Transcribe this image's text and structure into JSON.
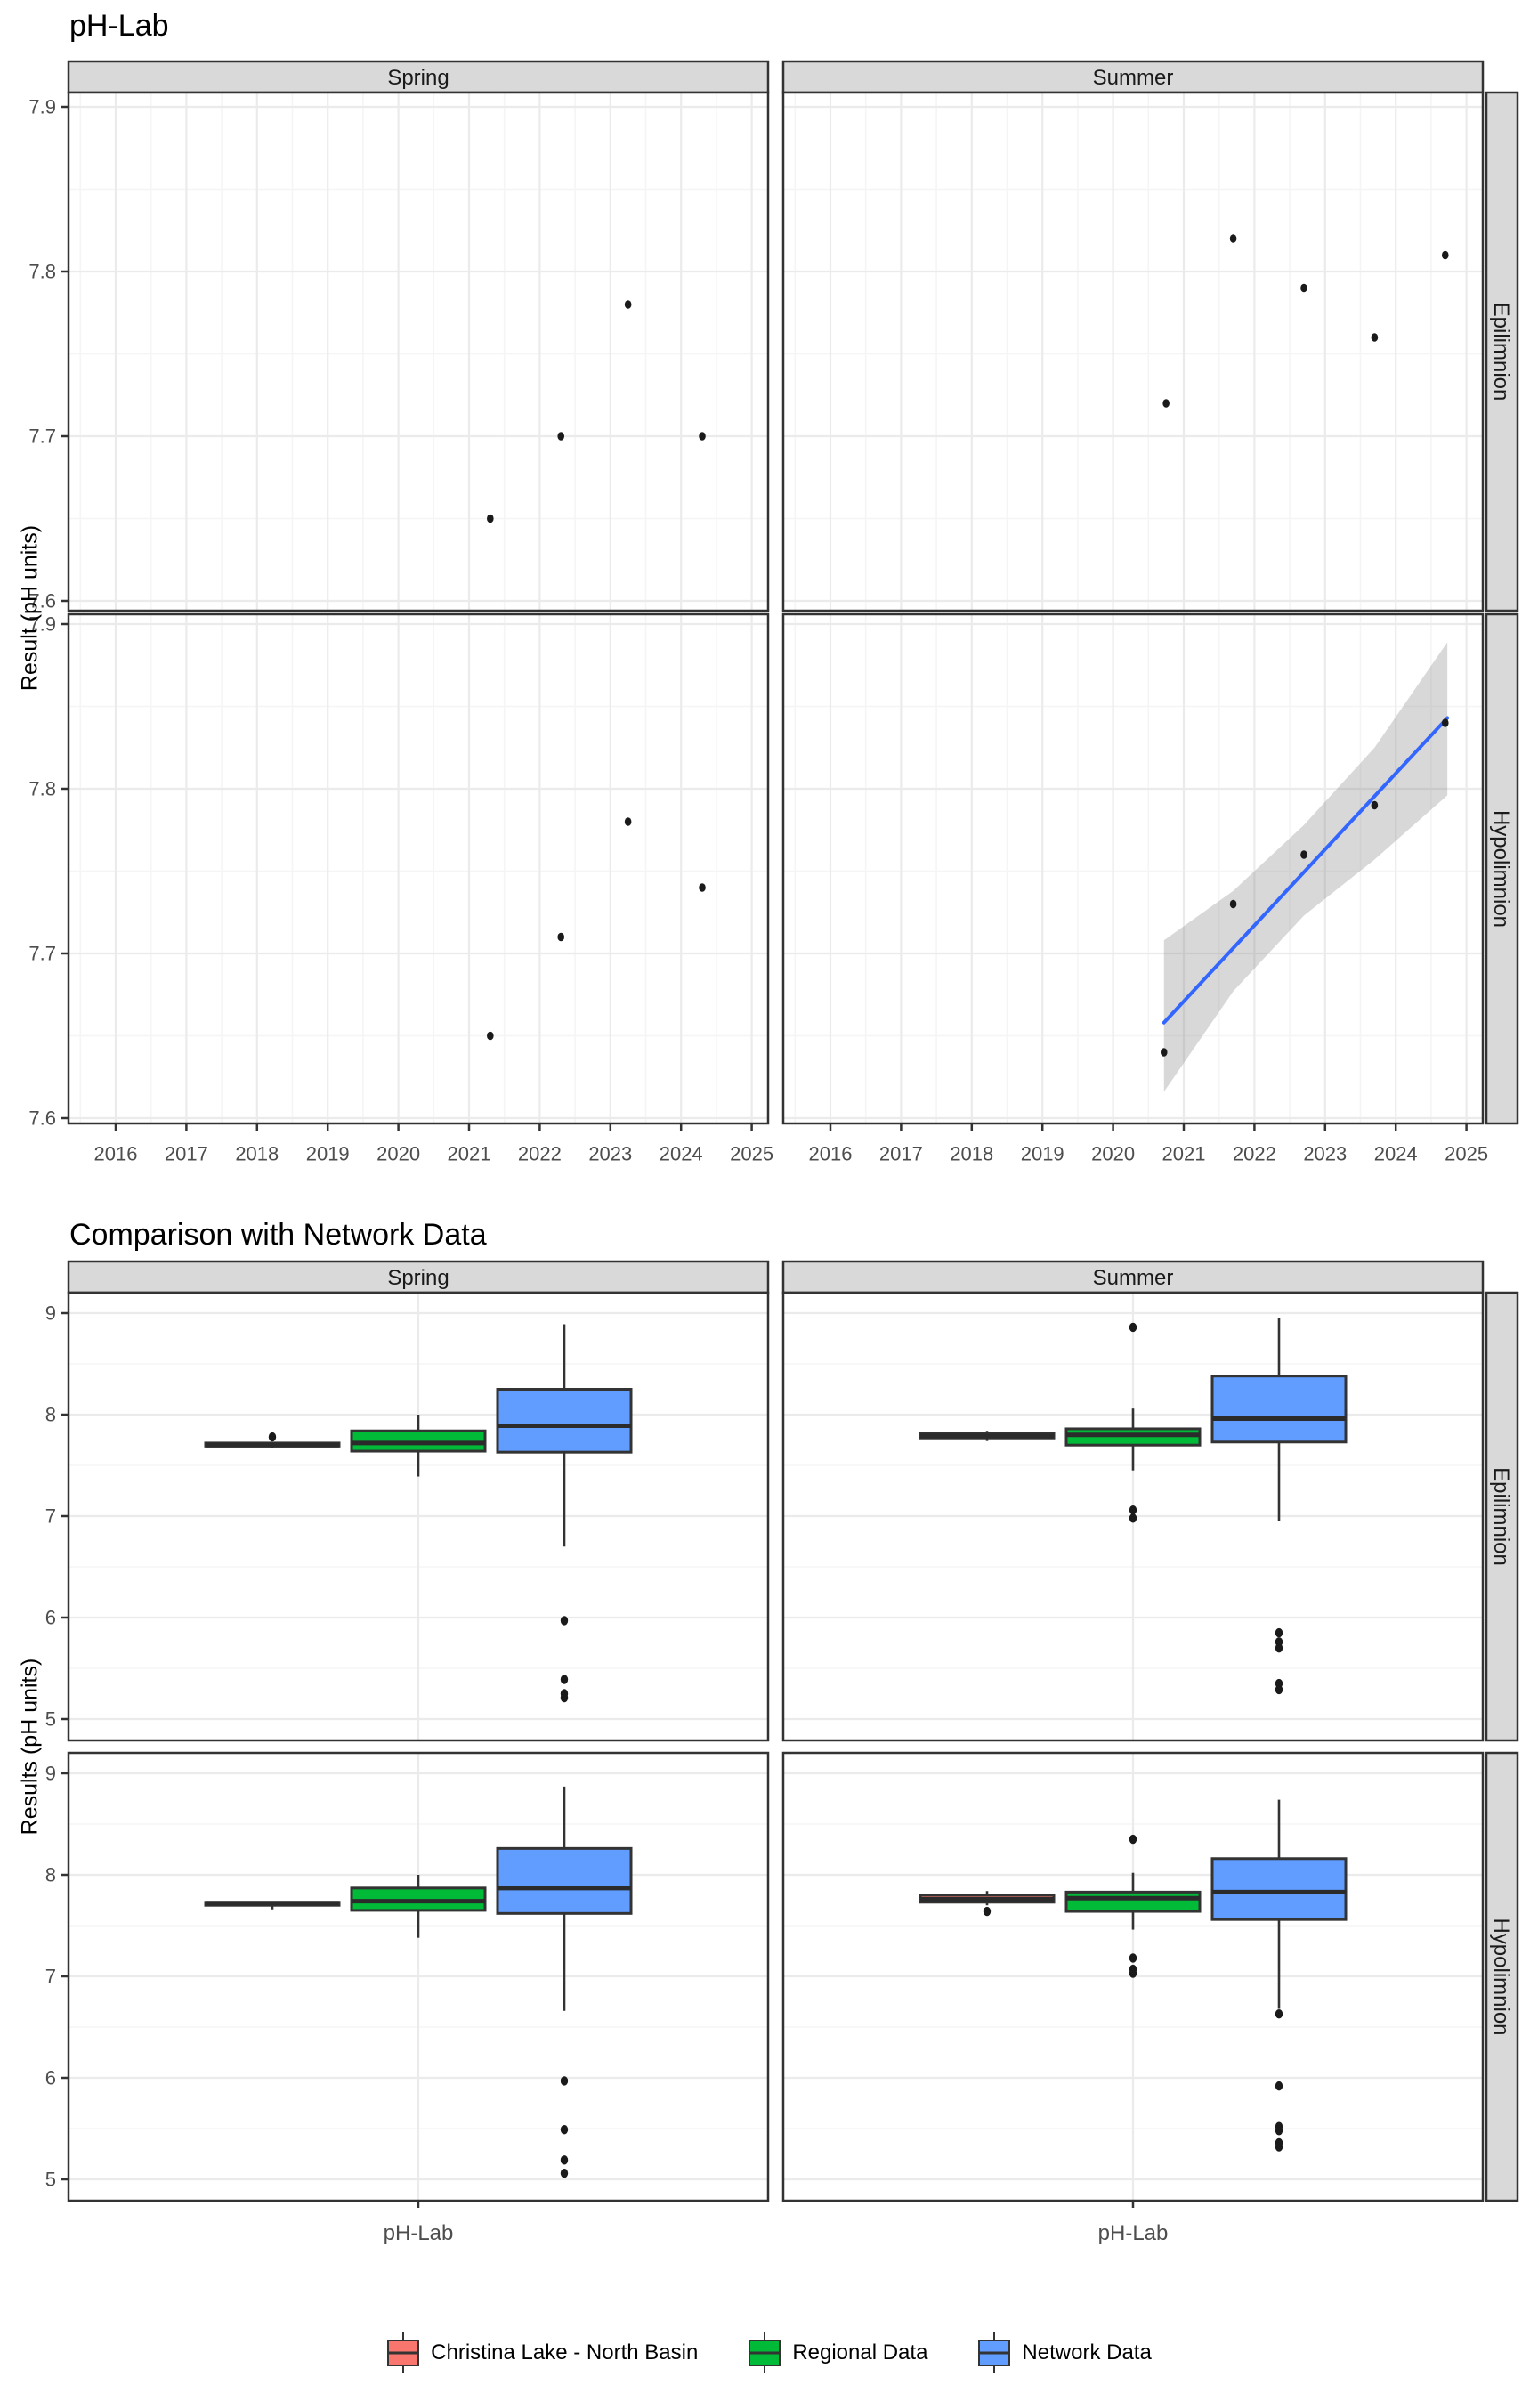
{
  "colors": {
    "christina": "#F8766D",
    "regional": "#00BA38",
    "network": "#619CFF",
    "trend_line": "#3366FF",
    "ribbon": "rgba(127,127,127,0.30)",
    "strip_bg": "#D9D9D9",
    "panel_border": "#333333",
    "grid_major": "#EBEBEB",
    "grid_minor": "#F5F5F5",
    "axis_text": "#4D4D4D",
    "point": "#1A1A1A",
    "box_border": "#333333"
  },
  "chart_data": [
    {
      "type": "scatter",
      "title": "pH-Lab",
      "ylabel": "Result (pH units)",
      "col_facets": [
        "Spring",
        "Summer"
      ],
      "row_facets": [
        "Epilimnion",
        "Hypolimnion"
      ],
      "x_ticks": [
        2016,
        2017,
        2018,
        2019,
        2020,
        2021,
        2022,
        2023,
        2024,
        2025
      ],
      "y_ticks": [
        7.6,
        7.7,
        7.8,
        7.9
      ],
      "grid": true,
      "panels": [
        {
          "col": "Spring",
          "row": "Epilimnion",
          "points": [
            [
              2021.3,
              7.65
            ],
            [
              2022.3,
              7.7
            ],
            [
              2023.25,
              7.78
            ],
            [
              2024.3,
              7.7
            ]
          ]
        },
        {
          "col": "Summer",
          "row": "Epilimnion",
          "points": [
            [
              2020.75,
              7.72
            ],
            [
              2021.7,
              7.82
            ],
            [
              2022.7,
              7.79
            ],
            [
              2023.7,
              7.76
            ],
            [
              2024.7,
              7.81
            ]
          ]
        },
        {
          "col": "Spring",
          "row": "Hypolimnion",
          "points": [
            [
              2021.3,
              7.65
            ],
            [
              2022.3,
              7.71
            ],
            [
              2023.25,
              7.78
            ],
            [
              2024.3,
              7.74
            ]
          ]
        },
        {
          "col": "Summer",
          "row": "Hypolimnion",
          "points": [
            [
              2020.72,
              7.64
            ],
            [
              2021.7,
              7.73
            ],
            [
              2022.7,
              7.76
            ],
            [
              2023.7,
              7.79
            ],
            [
              2024.7,
              7.84
            ]
          ],
          "smooth": {
            "line": [
              [
                2020.72,
                7.658
              ],
              [
                2024.73,
                7.843
              ]
            ],
            "ribbon": {
              "x": [
                2020.72,
                2021.7,
                2022.7,
                2023.7,
                2024.73
              ],
              "upper": [
                7.708,
                7.738,
                7.778,
                7.825,
                7.889
              ],
              "lower": [
                7.616,
                7.677,
                7.723,
                7.757,
                7.796
              ]
            }
          }
        }
      ]
    },
    {
      "type": "boxplot",
      "title": "Comparison with Network Data",
      "ylabel": "Results (pH units)",
      "xlabel": "pH-Lab",
      "col_facets": [
        "Spring",
        "Summer"
      ],
      "row_facets": [
        "Epilimnion",
        "Hypolimnion"
      ],
      "y_ticks": [
        5,
        6,
        7,
        8,
        9
      ],
      "groups": [
        "Christina Lake - North Basin",
        "Regional Data",
        "Network Data"
      ],
      "panels": [
        {
          "col": "Spring",
          "row": "Epilimnion",
          "boxes": [
            {
              "group": "Christina Lake - North Basin",
              "whisker_low": 7.67,
              "q1": 7.69,
              "median": 7.7,
              "q3": 7.72,
              "whisker_high": 7.73,
              "outliers": [
                7.78
              ]
            },
            {
              "group": "Regional Data",
              "whisker_low": 7.39,
              "q1": 7.64,
              "median": 7.72,
              "q3": 7.84,
              "whisker_high": 8.0,
              "outliers": []
            },
            {
              "group": "Network Data",
              "whisker_low": 6.7,
              "q1": 7.63,
              "median": 7.89,
              "q3": 8.25,
              "whisker_high": 8.89,
              "outliers": [
                5.97,
                5.39,
                5.25,
                5.21
              ]
            }
          ]
        },
        {
          "col": "Summer",
          "row": "Epilimnion",
          "boxes": [
            {
              "group": "Christina Lake - North Basin",
              "whisker_low": 7.74,
              "q1": 7.77,
              "median": 7.79,
              "q3": 7.82,
              "whisker_high": 7.84,
              "outliers": []
            },
            {
              "group": "Regional Data",
              "whisker_low": 7.45,
              "q1": 7.7,
              "median": 7.8,
              "q3": 7.86,
              "whisker_high": 8.06,
              "outliers": [
                8.86,
                7.06,
                6.98
              ]
            },
            {
              "group": "Network Data",
              "whisker_low": 6.95,
              "q1": 7.73,
              "median": 7.96,
              "q3": 8.38,
              "whisker_high": 8.95,
              "outliers": [
                5.85,
                5.76,
                5.7,
                5.35,
                5.29
              ]
            }
          ]
        },
        {
          "col": "Spring",
          "row": "Hypolimnion",
          "boxes": [
            {
              "group": "Christina Lake - North Basin",
              "whisker_low": 7.66,
              "q1": 7.7,
              "median": 7.72,
              "q3": 7.73,
              "whisker_high": 7.74,
              "outliers": []
            },
            {
              "group": "Regional Data",
              "whisker_low": 7.38,
              "q1": 7.65,
              "median": 7.74,
              "q3": 7.87,
              "whisker_high": 8.0,
              "outliers": []
            },
            {
              "group": "Network Data",
              "whisker_low": 6.66,
              "q1": 7.62,
              "median": 7.87,
              "q3": 8.26,
              "whisker_high": 8.87,
              "outliers": [
                5.97,
                5.49,
                5.19,
                5.06
              ]
            }
          ]
        },
        {
          "col": "Summer",
          "row": "Hypolimnion",
          "boxes": [
            {
              "group": "Christina Lake - North Basin",
              "whisker_low": 7.7,
              "q1": 7.73,
              "median": 7.76,
              "q3": 7.8,
              "whisker_high": 7.84,
              "outliers": [
                7.64
              ]
            },
            {
              "group": "Regional Data",
              "whisker_low": 7.46,
              "q1": 7.64,
              "median": 7.77,
              "q3": 7.83,
              "whisker_high": 8.02,
              "outliers": [
                8.35,
                7.18,
                7.07,
                7.03
              ]
            },
            {
              "group": "Network Data",
              "whisker_low": 6.68,
              "q1": 7.56,
              "median": 7.83,
              "q3": 8.16,
              "whisker_high": 8.74,
              "outliers": [
                6.63,
                5.92,
                5.52,
                5.48,
                5.36,
                5.32
              ]
            }
          ]
        }
      ]
    }
  ],
  "legend": {
    "items": [
      {
        "label": "Christina Lake - North Basin",
        "color": "#F8766D"
      },
      {
        "label": "Regional Data",
        "color": "#00BA38"
      },
      {
        "label": "Network Data",
        "color": "#619CFF"
      }
    ]
  }
}
